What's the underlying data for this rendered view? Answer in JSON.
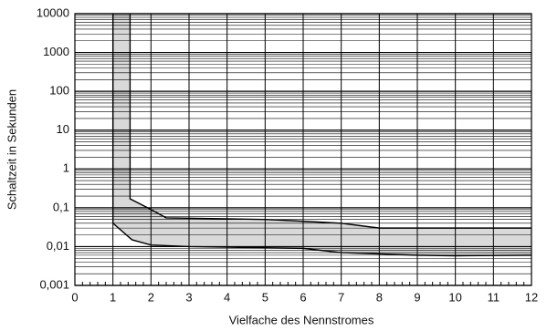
{
  "chart_data": {
    "type": "band",
    "xlabel": "Vielfache des Nennstromes",
    "ylabel": "Schaltzeit in Sekunden",
    "xlim": [
      0,
      12
    ],
    "xticks": [
      0,
      1,
      2,
      3,
      4,
      5,
      6,
      7,
      8,
      9,
      10,
      11,
      12
    ],
    "ylim": [
      0.001,
      10000
    ],
    "yticks": [
      {
        "value": 0.001,
        "label": "0,001"
      },
      {
        "value": 0.01,
        "label": "0,01"
      },
      {
        "value": 0.1,
        "label": "0,1"
      },
      1,
      10,
      100,
      1000,
      10000
    ],
    "ylog": true,
    "grid": true,
    "minor_grid": true,
    "xminor_per_unit": 5,
    "color": "#000000",
    "fill": "#d9d9d9",
    "series": [
      {
        "x": [
          1.45,
          1.45,
          2,
          2.4,
          5,
          6,
          7,
          8,
          12
        ],
        "values": [
          10000,
          0.17,
          0.09,
          0.055,
          0.05,
          0.045,
          0.04,
          0.03,
          0.03
        ]
      },
      {
        "x": [
          1,
          1,
          1.5,
          2,
          3,
          6,
          7,
          9,
          10,
          12
        ],
        "values": [
          10000,
          0.04,
          0.015,
          0.011,
          0.01,
          0.009,
          0.007,
          0.006,
          0.0058,
          0.006
        ]
      }
    ]
  }
}
